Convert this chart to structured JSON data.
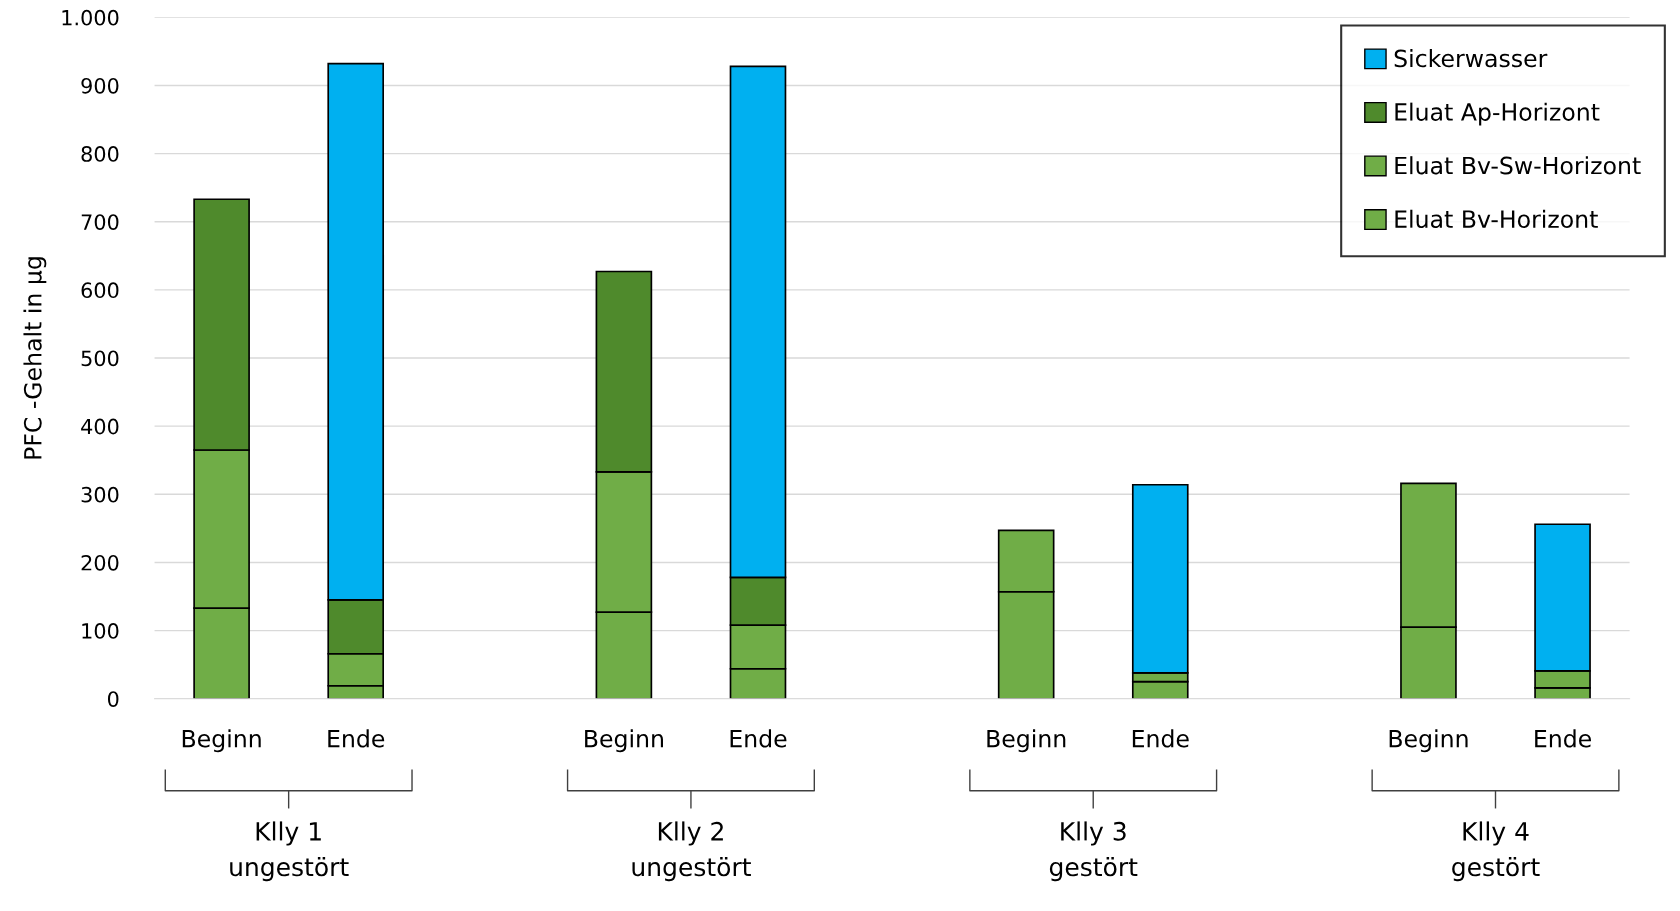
{
  "chart_data": {
    "type": "bar",
    "stacked": true,
    "ylabel": "PFC -Gehalt in µg",
    "categories": [
      "Beginn",
      "Ende",
      null,
      "Beginn",
      "Ende",
      null,
      "Beginn",
      "Ende",
      null,
      "Beginn",
      "Ende"
    ],
    "series": [
      {
        "name": "Eluat Bv-Horizont",
        "color": "#70ad47",
        "values": [
          133,
          19,
          null,
          127,
          44,
          null,
          157,
          25,
          null,
          105,
          16
        ]
      },
      {
        "name": "Eluat Bv-Sw-Horizont",
        "color": "#70ad47",
        "values": [
          232,
          47,
          null,
          206,
          64,
          null,
          90,
          13,
          null,
          211,
          25
        ]
      },
      {
        "name": "Eluat Ap-Horizont",
        "color": "#4f8a2c",
        "values": [
          368,
          79,
          null,
          294,
          70,
          null,
          null,
          null,
          null,
          null,
          null
        ]
      },
      {
        "name": "Sickerwasser",
        "color": "#00b0f0",
        "values": [
          null,
          787,
          null,
          null,
          750,
          null,
          null,
          276,
          null,
          null,
          215
        ]
      }
    ],
    "ylim": [
      0,
      1000
    ],
    "yticks": [
      0,
      100,
      200,
      300,
      400,
      500,
      600,
      700,
      800,
      900,
      {
        "value": 1000,
        "label": "1.000"
      }
    ],
    "grid": "y",
    "legend": "top right",
    "annotations": [
      "Klly 1\nungestört",
      "Klly 2\nungestört",
      "Klly 3\ngestört",
      "Klly 4\ngestört"
    ]
  }
}
